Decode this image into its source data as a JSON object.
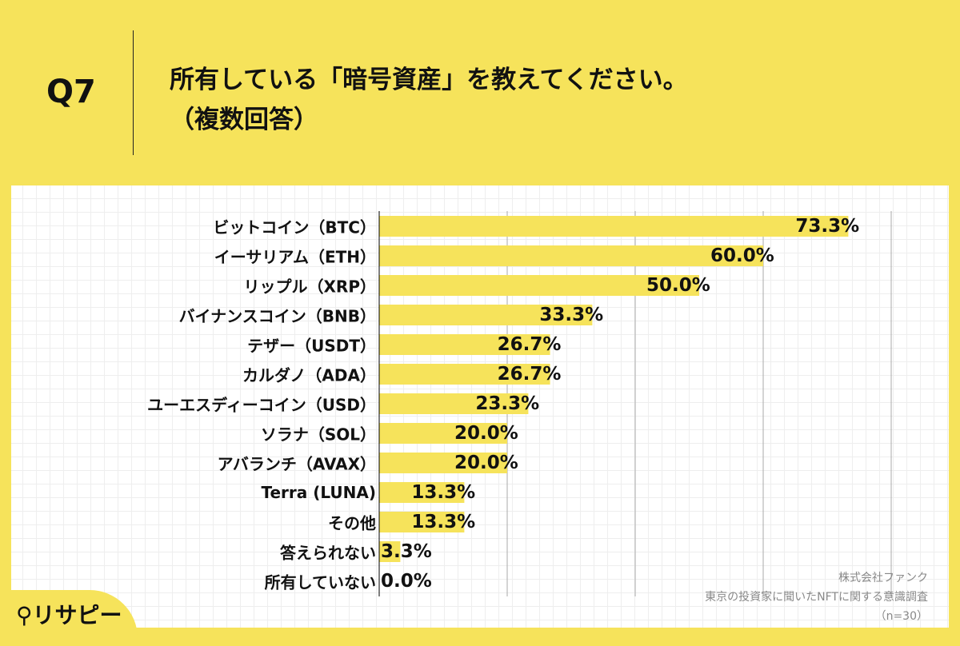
{
  "header": {
    "question_no": "Q7",
    "title_line1": "所有している「暗号資産」を教えてください。",
    "title_line2": "（複数回答）"
  },
  "colors": {
    "background": "#f6e35b",
    "bar": "#f6e35b",
    "gridline": "#aaaaaa"
  },
  "chart_data": {
    "type": "bar",
    "orientation": "horizontal",
    "categories": [
      "ビットコイン（BTC）",
      "イーサリアム（ETH）",
      "リップル（XRP）",
      "バイナンスコイン（BNB）",
      "テザー（USDT）",
      "カルダノ（ADA）",
      "ユーエスディーコイン（USD）",
      "ソラナ（SOL）",
      "アバランチ（AVAX）",
      "Terra (LUNA)",
      "その他",
      "答えられない",
      "所有していない"
    ],
    "values": [
      73.3,
      60.0,
      50.0,
      33.3,
      26.7,
      26.7,
      23.3,
      20.0,
      20.0,
      13.3,
      13.3,
      3.3,
      0.0
    ],
    "value_labels": [
      "73.3%",
      "60.0%",
      "50.0%",
      "33.3%",
      "26.7%",
      "26.7%",
      "23.3%",
      "20.0%",
      "20.0%",
      "13.3%",
      "13.3%",
      "3.3%",
      "0.0%"
    ],
    "xlim": [
      0,
      80
    ],
    "grid_x": [
      20,
      40,
      60,
      80
    ]
  },
  "footer": {
    "company": "株式会社ファンク",
    "survey": "東京の投資家に聞いたNFTに関する意識調査",
    "sample": "（n=30）",
    "logo": "リサピー"
  }
}
